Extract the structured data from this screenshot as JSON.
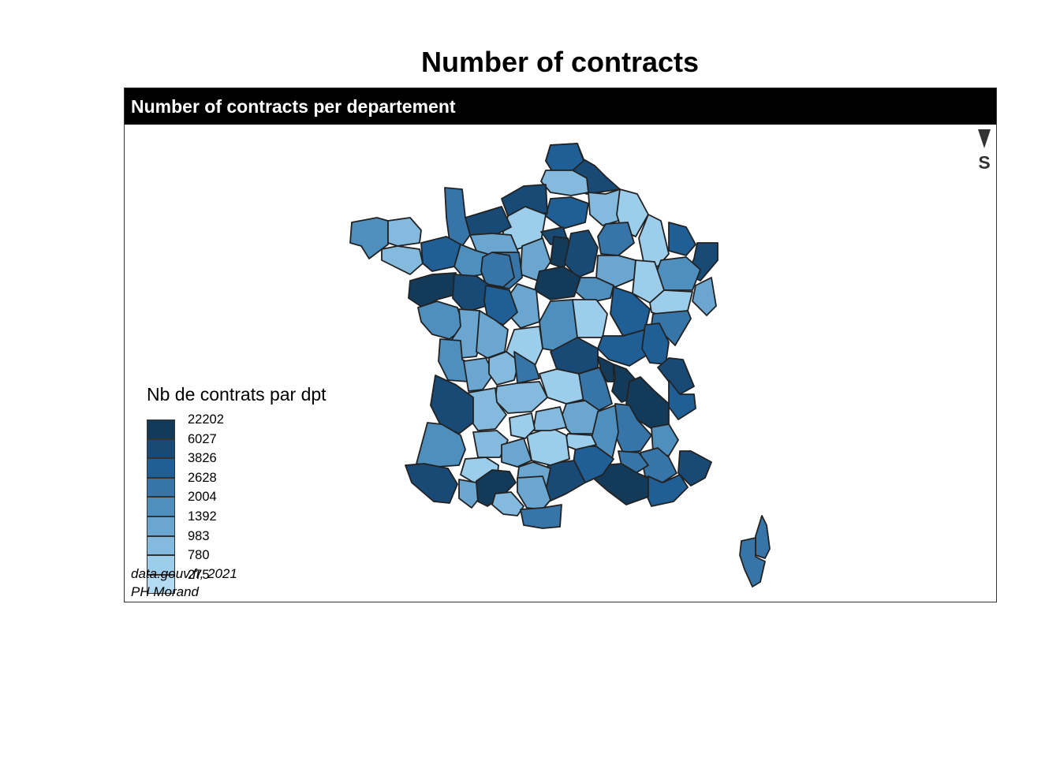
{
  "title": "Number of contracts",
  "panel": {
    "title": "Number of contracts per departement"
  },
  "compass": {
    "label": "S",
    "icon": "north-arrow-icon"
  },
  "legend": {
    "title": "Nb de contrats par dpt",
    "items": [
      {
        "label": "22202",
        "color": "#143a5a"
      },
      {
        "label": "6027",
        "color": "#184a75"
      },
      {
        "label": "3826",
        "color": "#1f5f95"
      },
      {
        "label": "2628",
        "color": "#3774a7"
      },
      {
        "label": "2004",
        "color": "#4f8fbe"
      },
      {
        "label": "1392",
        "color": "#6aa6cf"
      },
      {
        "label": "983",
        "color": "#83bade"
      },
      {
        "label": "780",
        "color": "#9ccdea"
      },
      {
        "label": "275",
        "color": "#b3dbf1"
      }
    ]
  },
  "credits": {
    "line1": "data.gouv.fr, 2021",
    "line2": "PH Morand"
  }
}
